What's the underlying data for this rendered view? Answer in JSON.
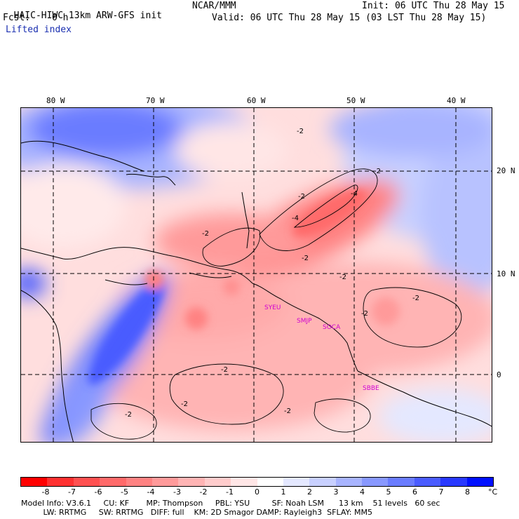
{
  "header": {
    "model_title": "HAIC-HIWC 13km ARW-GFS init",
    "org": "NCAR/MMM",
    "init": "Init: 06 UTC Thu 28 May 15",
    "fcst_label": "Fcst:",
    "fcst_value": "0 h",
    "valid": "Valid: 06 UTC Thu 28 May 15 (03 LST Thu 28 May 15)",
    "field": "Lifted index"
  },
  "axes": {
    "lon_ticks": [
      "80 W",
      "70 W",
      "60 W",
      "50 W",
      "40 W"
    ],
    "lat_ticks": [
      "20 N",
      "10 N",
      "0"
    ]
  },
  "map_labels": {
    "city_1": "SYEU",
    "city_2": "SMJP",
    "city_3": "SOCA",
    "city_4": "SBBE",
    "contour_minus2": "-2",
    "contour_minus4": "-4"
  },
  "colorbar": {
    "labels": [
      "-8",
      "-7",
      "-6",
      "-5",
      "-4",
      "-3",
      "-2",
      "-1",
      "0",
      "1",
      "2",
      "3",
      "4",
      "5",
      "6",
      "7",
      "8"
    ],
    "unit": "°C",
    "colors": [
      "#ff0000",
      "#ff3030",
      "#ff5050",
      "#ff6a6a",
      "#ff8282",
      "#ff9a9a",
      "#ffb4b4",
      "#ffcccc",
      "#ffe6e6",
      "#ffffff",
      "#e4e8ff",
      "#c8d0ff",
      "#a8b4ff",
      "#8898ff",
      "#6a7cff",
      "#4a5cff",
      "#2838ff",
      "#0010ff"
    ]
  },
  "footer": {
    "line1": "Model Info: V3.6.1     CU: KF       MP: Thompson     PBL: YSU         SF: Noah LSM      13 km    51 levels   60 sec",
    "line2": "         LW: RRTMG     SW: RRTMG   DIFF: full    KM: 2D Smagor DAMP: Rayleigh3  SFLAY: MM5"
  }
}
